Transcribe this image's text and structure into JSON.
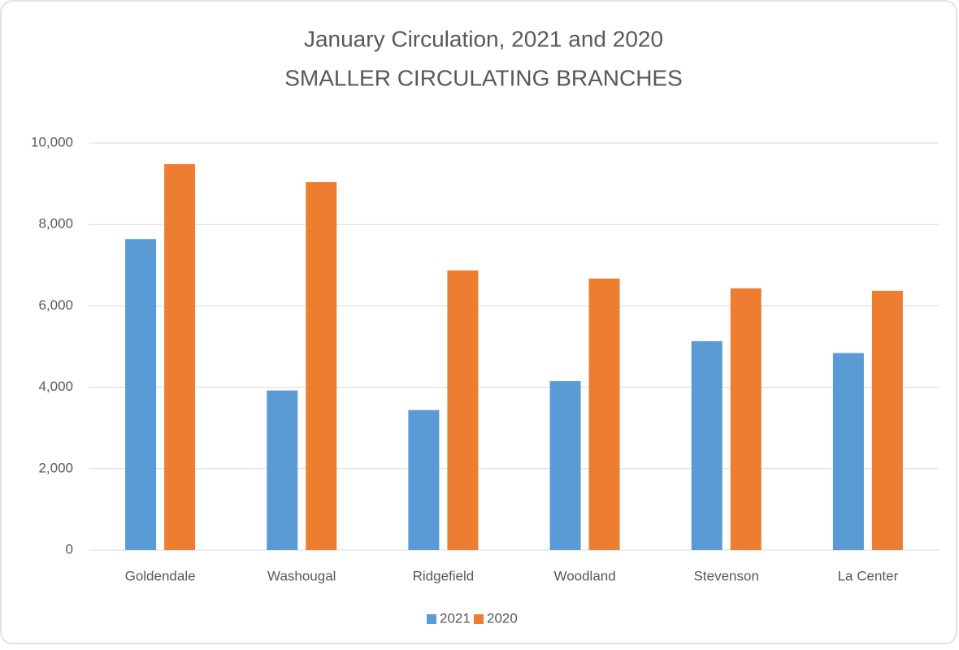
{
  "chart_data": {
    "type": "bar",
    "title": "January Circulation, 2021 and 2020",
    "subtitle": "SMALLER CIRCULATING BRANCHES",
    "categories": [
      "Goldendale",
      "Washougal",
      "Ridgefield",
      "Woodland",
      "Stevenson",
      "La Center"
    ],
    "series": [
      {
        "name": "2021",
        "color": "#5b9bd5",
        "values": [
          7640,
          3920,
          3440,
          4150,
          5130,
          4840
        ]
      },
      {
        "name": "2020",
        "color": "#ed7d31",
        "values": [
          9480,
          9040,
          6870,
          6670,
          6430,
          6370
        ]
      }
    ],
    "ylim": [
      0,
      10000
    ],
    "yticks": [
      0,
      {
        "value": 2000,
        "label": "2,000"
      },
      {
        "value": 4000,
        "label": "4,000"
      },
      {
        "value": 6000,
        "label": "6,000"
      },
      {
        "value": 8000,
        "label": "8,000"
      },
      {
        "value": 10000,
        "label": "10,000"
      }
    ],
    "grid": true,
    "legend": "bottom"
  }
}
